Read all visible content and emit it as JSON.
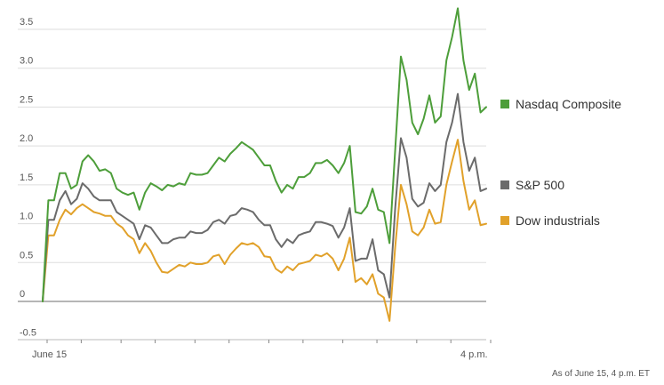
{
  "chart_data": {
    "type": "line",
    "ylim": [
      -0.5,
      3.8
    ],
    "y_ticks": [
      -0.5,
      0,
      0.5,
      1.0,
      1.5,
      2.0,
      2.5,
      3.0,
      3.5
    ],
    "y_tick_labels": [
      "-0.5",
      "0",
      "0.5",
      "1.0",
      "1.5",
      "2.0",
      "2.5",
      "3.0",
      "3.5"
    ],
    "x_tick_labels": [
      {
        "index": 0,
        "label": "June 15"
      },
      {
        "index": 78,
        "label": "4 p.m."
      }
    ],
    "x_minor_ticks": [
      0,
      6,
      13,
      19,
      26,
      32,
      39,
      45,
      52,
      58,
      65,
      71,
      78
    ],
    "grid": true,
    "legend_placement": "right",
    "series": [
      {
        "name": "Nasdaq Composite",
        "color": "#4d9e3a",
        "values": [
          0,
          1.3,
          1.3,
          1.65,
          1.65,
          1.45,
          1.5,
          1.8,
          1.88,
          1.8,
          1.68,
          1.7,
          1.65,
          1.45,
          1.4,
          1.37,
          1.4,
          1.18,
          1.4,
          1.52,
          1.48,
          1.43,
          1.5,
          1.48,
          1.52,
          1.5,
          1.65,
          1.63,
          1.63,
          1.65,
          1.75,
          1.85,
          1.8,
          1.9,
          1.97,
          2.05,
          2.0,
          1.95,
          1.85,
          1.75,
          1.75,
          1.55,
          1.4,
          1.5,
          1.45,
          1.6,
          1.6,
          1.65,
          1.78,
          1.78,
          1.82,
          1.75,
          1.65,
          1.78,
          2.0,
          1.15,
          1.13,
          1.22,
          1.45,
          1.18,
          1.15,
          0.75,
          1.95,
          3.15,
          2.85,
          2.3,
          2.15,
          2.35,
          2.65,
          2.3,
          2.38,
          3.1,
          3.4,
          3.77,
          3.1,
          2.72,
          2.93,
          2.43,
          2.5
        ]
      },
      {
        "name": "S&P 500",
        "color": "#6b6b6b",
        "values": [
          0,
          1.05,
          1.05,
          1.3,
          1.42,
          1.25,
          1.32,
          1.52,
          1.45,
          1.35,
          1.3,
          1.3,
          1.3,
          1.15,
          1.1,
          1.05,
          1.0,
          0.8,
          0.98,
          0.95,
          0.85,
          0.75,
          0.75,
          0.8,
          0.82,
          0.82,
          0.9,
          0.88,
          0.88,
          0.92,
          1.02,
          1.05,
          1.0,
          1.1,
          1.12,
          1.2,
          1.18,
          1.15,
          1.05,
          0.98,
          0.98,
          0.8,
          0.7,
          0.8,
          0.75,
          0.85,
          0.88,
          0.9,
          1.02,
          1.02,
          1.0,
          0.97,
          0.82,
          0.95,
          1.2,
          0.52,
          0.55,
          0.55,
          0.8,
          0.4,
          0.35,
          0.05,
          1.2,
          2.1,
          1.85,
          1.32,
          1.22,
          1.27,
          1.52,
          1.42,
          1.5,
          2.05,
          2.3,
          2.67,
          2.05,
          1.68,
          1.85,
          1.42,
          1.45
        ]
      },
      {
        "name": "Dow industrials",
        "color": "#e1a12a",
        "values": [
          0,
          0.85,
          0.85,
          1.05,
          1.18,
          1.12,
          1.2,
          1.25,
          1.2,
          1.15,
          1.13,
          1.1,
          1.1,
          1.0,
          0.95,
          0.85,
          0.8,
          0.62,
          0.75,
          0.65,
          0.5,
          0.38,
          0.37,
          0.42,
          0.47,
          0.45,
          0.5,
          0.48,
          0.48,
          0.5,
          0.58,
          0.6,
          0.48,
          0.6,
          0.68,
          0.75,
          0.73,
          0.75,
          0.7,
          0.58,
          0.57,
          0.42,
          0.37,
          0.45,
          0.4,
          0.48,
          0.5,
          0.52,
          0.6,
          0.58,
          0.62,
          0.55,
          0.4,
          0.55,
          0.82,
          0.25,
          0.3,
          0.22,
          0.35,
          0.1,
          0.05,
          -0.25,
          0.7,
          1.5,
          1.25,
          0.9,
          0.85,
          0.95,
          1.18,
          1.0,
          1.02,
          1.5,
          1.8,
          2.08,
          1.55,
          1.18,
          1.3,
          0.98,
          1.0
        ]
      }
    ]
  },
  "footnote": "As of June 15, 4 p.m. ET"
}
